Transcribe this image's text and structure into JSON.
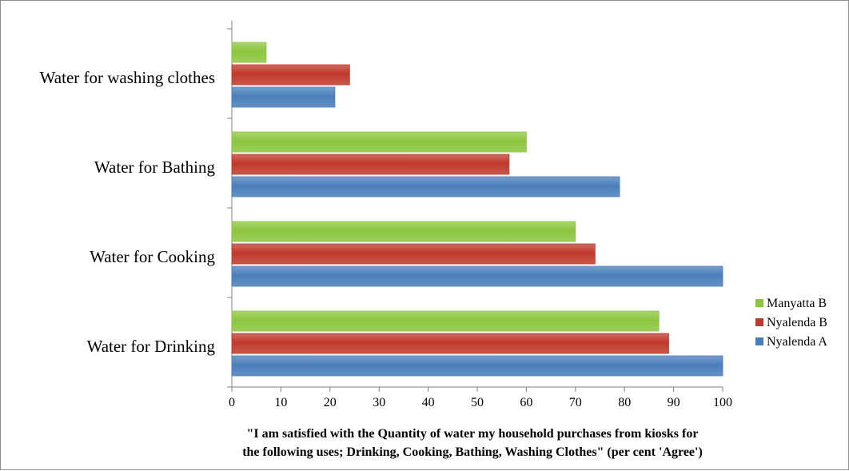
{
  "chart_data": {
    "type": "bar",
    "orientation": "horizontal",
    "categories": [
      "Water for Drinking",
      "Water for Cooking",
      "Water for Bathing",
      "Water for washing clothes"
    ],
    "series": [
      {
        "name": "Nyalenda A",
        "color": "#4a7ebb",
        "values": [
          100,
          100,
          79,
          21
        ]
      },
      {
        "name": "Nyalenda B",
        "color": "#c0392b",
        "values": [
          89,
          74,
          56.5,
          24
        ]
      },
      {
        "name": "Manyatta B",
        "color": "#8cc63f",
        "values": [
          87,
          70,
          60,
          7
        ]
      }
    ],
    "xlim": [
      0,
      100
    ],
    "xticks": [
      0,
      10,
      20,
      30,
      40,
      50,
      60,
      70,
      80,
      90,
      100
    ],
    "xlabel": [
      "\"I am satisfied with  the Quantity  of water my household purchases from  kiosks for",
      "the following  uses; Drinking,  Cooking, Bathing, Washing Clothes\" (per cent 'Agree')"
    ],
    "legend_placement": "right",
    "legend_order": [
      "Manyatta B",
      "Nyalenda B",
      "Nyalenda A"
    ],
    "grid": false
  }
}
